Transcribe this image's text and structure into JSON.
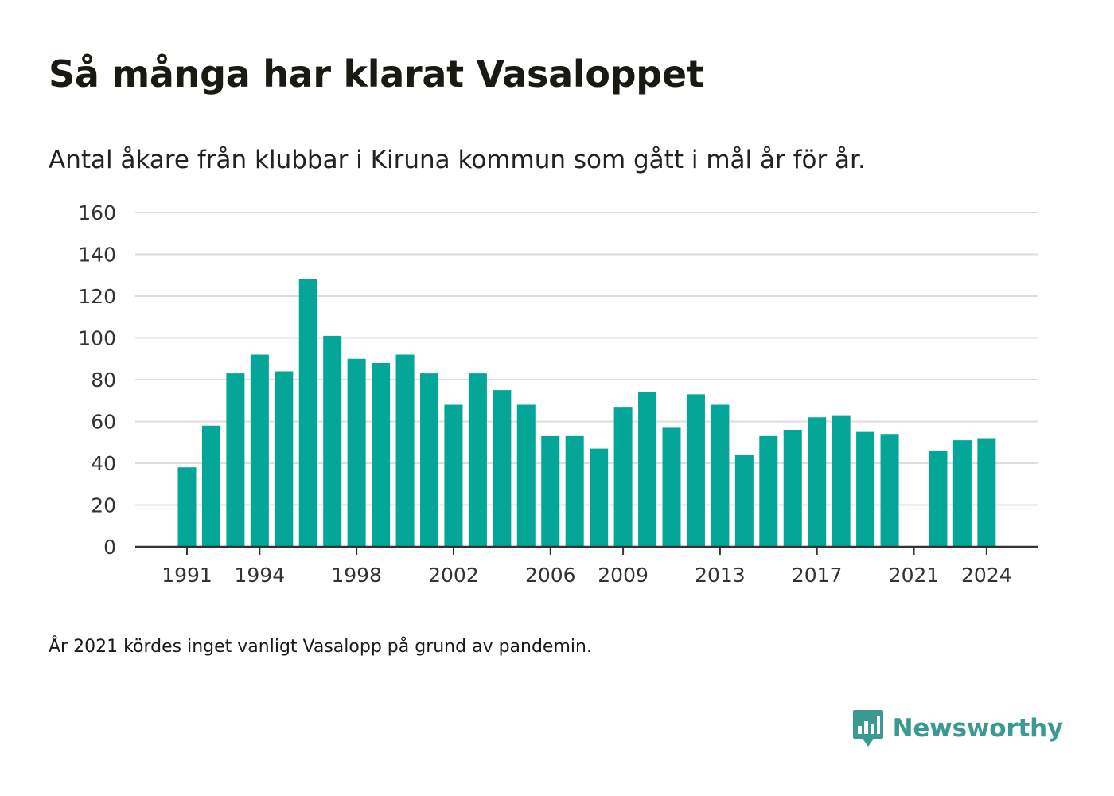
{
  "title": "Så många har klarat Vasaloppet",
  "subtitle": "Antal åkare från klubbar i Kiruna kommun som gått i mål år för år.",
  "footnote": "År 2021 kördes inget vanligt Vasalopp på grund av pandemin.",
  "brand": {
    "name": "Newsworthy",
    "icon": "newsworthy-logo-icon"
  },
  "colors": {
    "bar": "#04a698",
    "grid": "#dddddd",
    "axis": "#333333",
    "brand": "#3a9a92"
  },
  "chart_data": {
    "type": "bar",
    "categories": [
      "1991",
      "1992",
      "1993",
      "1994",
      "1995",
      "1996",
      "1997",
      "1998",
      "1999",
      "2000",
      "2001",
      "2002",
      "2003",
      "2004",
      "2005",
      "2006",
      "2007",
      "2008",
      "2009",
      "2010",
      "2011",
      "2012",
      "2013",
      "2014",
      "2015",
      "2016",
      "2017",
      "2018",
      "2019",
      "2020",
      "2021",
      "2022",
      "2023",
      "2024"
    ],
    "values": [
      38,
      58,
      83,
      92,
      84,
      128,
      101,
      90,
      88,
      92,
      83,
      68,
      83,
      75,
      68,
      53,
      53,
      47,
      67,
      74,
      57,
      73,
      68,
      44,
      53,
      56,
      62,
      63,
      55,
      54,
      null,
      46,
      51,
      52
    ],
    "x_tick_labels": [
      "1991",
      "1994",
      "1998",
      "2002",
      "2006",
      "2009",
      "2013",
      "2017",
      "2021",
      "2024"
    ],
    "y_ticks": [
      0,
      20,
      40,
      60,
      80,
      100,
      120,
      140,
      160
    ],
    "ylim": [
      0,
      160
    ],
    "xlabel": "",
    "ylabel": "",
    "grid": true,
    "legend": "none"
  }
}
